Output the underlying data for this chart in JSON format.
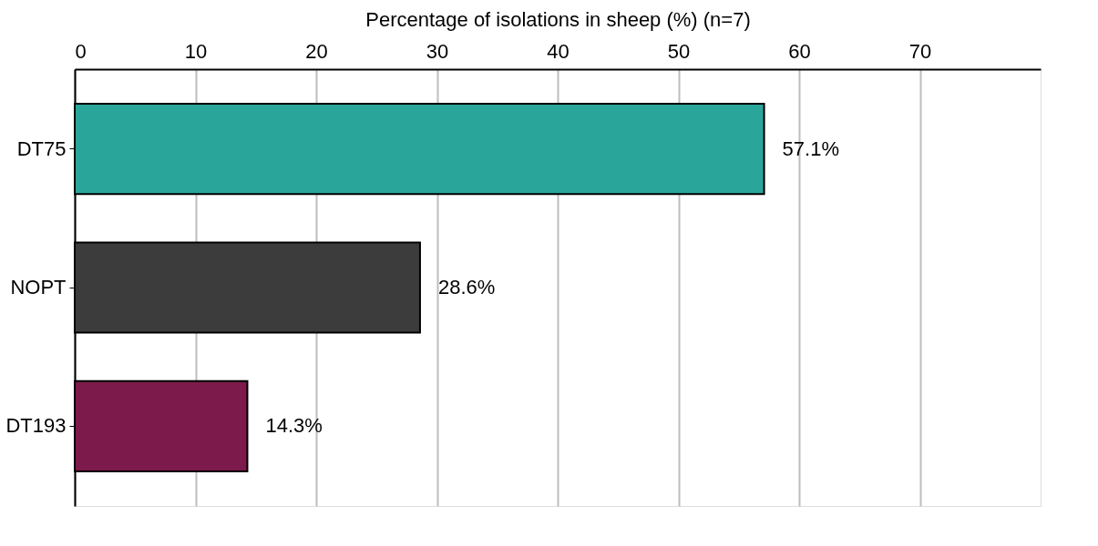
{
  "chart_data": {
    "type": "bar",
    "orientation": "horizontal",
    "xlabel": "Percentage of isolations in sheep (%) (n=7)",
    "categories": [
      "DT75",
      "NOPT",
      "DT193"
    ],
    "values": [
      57.1,
      28.6,
      14.3
    ],
    "colors": [
      "#2aa59a",
      "#3c3c3c",
      "#7d1a4c"
    ],
    "value_labels": [
      "57.1%",
      "28.6%",
      "14.3%"
    ],
    "xlim": [
      0,
      80
    ],
    "xticks": [
      0,
      10,
      20,
      30,
      40,
      50,
      60,
      70
    ],
    "grid": "x",
    "legend": false
  }
}
